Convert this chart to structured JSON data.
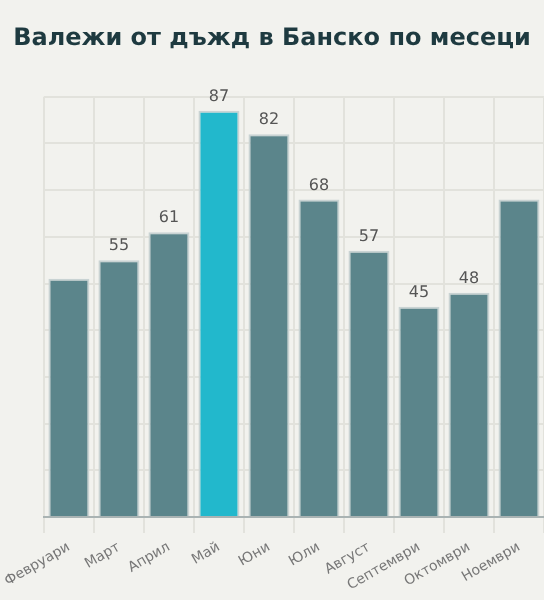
{
  "chart_data": {
    "type": "bar",
    "title": "Валежи от дъжд в Банско по месеци",
    "categories": [
      "Февруари",
      "Март",
      "Април",
      "Май",
      "Юни",
      "Юли",
      "Август",
      "Септември",
      "Октомври",
      "Ноември"
    ],
    "values": [
      51,
      55,
      61,
      87,
      82,
      68,
      57,
      45,
      48,
      68
    ],
    "value_labels": [
      null,
      "55",
      "61",
      "87",
      "82",
      "68",
      "57",
      "45",
      "48",
      null
    ],
    "colors": [
      "#5b858b",
      "#5b858b",
      "#5b858b",
      "#22b8cc",
      "#5b858b",
      "#5b858b",
      "#5b858b",
      "#5b858b",
      "#5b858b",
      "#5b858b"
    ],
    "ylim": [
      0,
      90
    ],
    "yticks": [
      {
        "value": 0,
        "label": null
      },
      {
        "value": 10,
        "label": null
      },
      {
        "value": 20,
        "label": null
      },
      {
        "value": 30,
        "label": null
      },
      {
        "value": 40,
        "label": null
      },
      {
        "value": 50,
        "label": null
      },
      {
        "value": 60,
        "label": null
      },
      {
        "value": 70,
        "label": null
      },
      {
        "value": 80,
        "label": null
      },
      {
        "value": 90,
        "label": null
      }
    ],
    "tick_labels": "x",
    "grid": true
  }
}
